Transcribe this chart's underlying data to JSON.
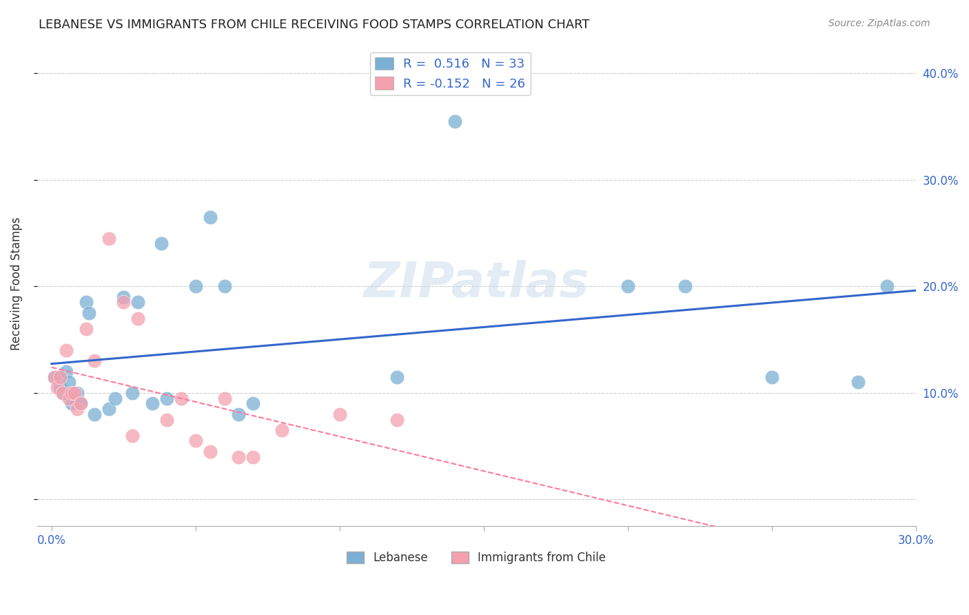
{
  "title": "LEBANESE VS IMMIGRANTS FROM CHILE RECEIVING FOOD STAMPS CORRELATION CHART",
  "source": "Source: ZipAtlas.com",
  "ylabel": "Receiving Food Stamps",
  "xlim": [
    -0.005,
    0.3
  ],
  "ylim": [
    -0.025,
    0.43
  ],
  "xticks": [
    0.0,
    0.05,
    0.1,
    0.15,
    0.2,
    0.25,
    0.3
  ],
  "yticks": [
    0.0,
    0.1,
    0.2,
    0.3,
    0.4
  ],
  "blue_color": "#7BAFD4",
  "pink_color": "#F4A0AE",
  "line_blue": "#3366CC",
  "line_pink": "#FF7799",
  "watermark": "ZIPatlas",
  "blue_x": [
    0.001,
    0.002,
    0.003,
    0.004,
    0.005,
    0.006,
    0.007,
    0.008,
    0.009,
    0.01,
    0.012,
    0.013,
    0.015,
    0.02,
    0.022,
    0.025,
    0.028,
    0.03,
    0.035,
    0.038,
    0.04,
    0.05,
    0.055,
    0.06,
    0.065,
    0.07,
    0.12,
    0.14,
    0.2,
    0.22,
    0.25,
    0.28,
    0.29
  ],
  "blue_y": [
    0.115,
    0.115,
    0.105,
    0.1,
    0.12,
    0.11,
    0.09,
    0.095,
    0.1,
    0.09,
    0.185,
    0.175,
    0.08,
    0.085,
    0.095,
    0.19,
    0.1,
    0.185,
    0.09,
    0.24,
    0.095,
    0.2,
    0.265,
    0.2,
    0.08,
    0.09,
    0.115,
    0.355,
    0.2,
    0.2,
    0.115,
    0.11,
    0.2
  ],
  "pink_x": [
    0.001,
    0.002,
    0.003,
    0.004,
    0.005,
    0.006,
    0.007,
    0.008,
    0.009,
    0.01,
    0.012,
    0.015,
    0.02,
    0.025,
    0.028,
    0.03,
    0.04,
    0.045,
    0.05,
    0.055,
    0.06,
    0.065,
    0.07,
    0.08,
    0.1,
    0.12
  ],
  "pink_y": [
    0.115,
    0.105,
    0.115,
    0.1,
    0.14,
    0.095,
    0.1,
    0.1,
    0.085,
    0.09,
    0.16,
    0.13,
    0.245,
    0.185,
    0.06,
    0.17,
    0.075,
    0.095,
    0.055,
    0.045,
    0.095,
    0.04,
    0.04,
    0.065,
    0.08,
    0.075
  ],
  "legend1_label": "R =  0.516   N = 33",
  "legend2_label": "R = -0.152   N = 26",
  "bottom_legend1": "Lebanese",
  "bottom_legend2": "Immigrants from Chile"
}
